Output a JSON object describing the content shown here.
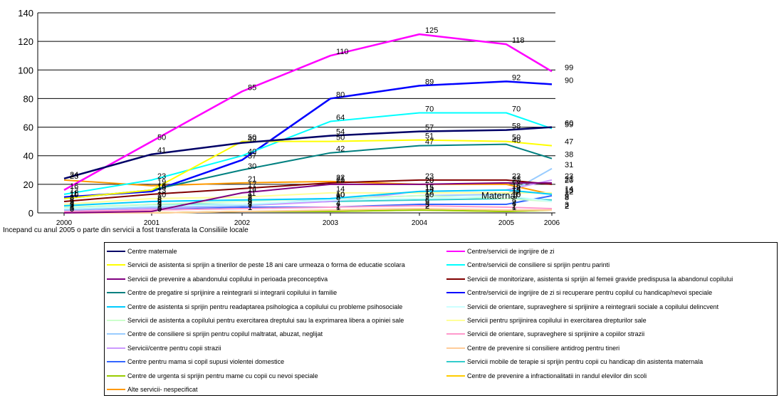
{
  "note": "Incepand cu anul 2005 o parte din servicii a fost transferata la Consiliile locale",
  "annotation": "Maternal",
  "chart_data": {
    "type": "line",
    "x": [
      "2000",
      "2001",
      "2002",
      "2003",
      "2004",
      "2005",
      "2006"
    ],
    "ylim": [
      0,
      140
    ],
    "yticks": [
      0,
      20,
      40,
      60,
      80,
      100,
      120,
      140
    ],
    "grid": true,
    "legend_position": "bottom",
    "series": [
      {
        "name": "Centre maternale",
        "color": "#000066",
        "values": [
          24,
          41,
          49,
          54,
          57,
          58,
          60
        ]
      },
      {
        "name": "Centre/servicii de ingrijire de zi",
        "color": "#ff00ff",
        "values": [
          16,
          50,
          85,
          110,
          125,
          118,
          99
        ]
      },
      {
        "name": "Servicii de asistenta si sprijin a tinerilor de peste 18 ani care urmeaza o forma de educatie scolara",
        "color": "#ffff00",
        "values": [
          10,
          16,
          50,
          50,
          51,
          50,
          47
        ]
      },
      {
        "name": "Centre/servicii de consiliere si sprijin pentru parinti",
        "color": "#00ffff",
        "values": [
          13,
          23,
          40,
          64,
          70,
          70,
          59
        ]
      },
      {
        "name": "Servicii de prevenire a abandonului copilului in perioada preconceptiva",
        "color": "#800080",
        "values": [
          0,
          1,
          14,
          20,
          20,
          21,
          21
        ]
      },
      {
        "name": "Servicii de monitorizare, asistenta si sprijin al femeii gravide predispusa la abandonul copilului",
        "color": "#800000",
        "values": [
          8,
          13,
          17,
          21,
          23,
          23,
          20
        ]
      },
      {
        "name": "Centre de pregatire si sprijinire a reintegrarii si integrarii copilului in familie",
        "color": "#008080",
        "values": [
          10,
          16,
          30,
          42,
          47,
          48,
          38
        ]
      },
      {
        "name": "Centre/servicii de ingrijire de zi si recuperare pentru copilul cu handicap/nevoi speciale",
        "color": "#0000ff",
        "values": [
          11,
          15,
          37,
          80,
          89,
          92,
          90
        ]
      },
      {
        "name": "Centre de asistenta si sprijin pentru readaptarea psihologica a copilului cu probleme psihosociale",
        "color": "#00ccff",
        "values": [
          5,
          8,
          9,
          10,
          15,
          16,
          13
        ]
      },
      {
        "name": "Servicii de orientare, supraveghere si sprijinire a reintegrarii sociale a copilului delincvent",
        "color": "#ccffff",
        "values": [
          3,
          5,
          6,
          9,
          10,
          12,
          8
        ]
      },
      {
        "name": "Servicii de asistenta a copilului pentru exercitarea dreptului sau la exprimarea libera a opiniei sale",
        "color": "#ccffcc",
        "values": [
          4,
          6,
          8,
          10,
          12,
          10,
          8
        ]
      },
      {
        "name": "Servicii pentru sprijinirea copilului in exercitarea drepturilor sale",
        "color": "#ffff99",
        "values": [
          6,
          10,
          11,
          14,
          14,
          14,
          14
        ]
      },
      {
        "name": "Centre de consiliere si sprijin pentru copilul maltratat, abuzat, neglijat",
        "color": "#99ccff",
        "values": [
          2,
          4,
          5,
          10,
          12,
          13,
          31
        ]
      },
      {
        "name": "Servicii de orientare, supraveghere si sprijinire a copiilor strazii",
        "color": "#ff99cc",
        "values": [
          1,
          2,
          3,
          4,
          5,
          4,
          3
        ]
      },
      {
        "name": "Servicii/centre pentru copii strazii",
        "color": "#cc99ff",
        "values": [
          1,
          3,
          5,
          8,
          15,
          16,
          23
        ]
      },
      {
        "name": "Centre de prevenire si consiliere antidrog pentru tineri",
        "color": "#ffcc99",
        "values": [
          0,
          0,
          1,
          2,
          3,
          2,
          2
        ]
      },
      {
        "name": "Centre pentru mama si copil supusi violentei domestice",
        "color": "#3366ff",
        "values": [
          2,
          3,
          4,
          4,
          6,
          6,
          12
        ]
      },
      {
        "name": "Servicii mobile de terapie si sprijin pentru copii cu handicap din asistenta maternala",
        "color": "#33cccc",
        "values": [
          3,
          6,
          6,
          8,
          9,
          10,
          9
        ]
      },
      {
        "name": "Centre de urgenta si sprijin pentru mame cu copii cu nevoi speciale",
        "color": "#99cc00",
        "values": [
          0,
          0,
          1,
          1,
          2,
          1,
          2
        ]
      },
      {
        "name": "Centre de prevenire a infractionalitatii in randul elevilor din scoli",
        "color": "#ffcc00",
        "values": [
          0,
          0,
          1,
          1,
          2,
          1,
          2
        ]
      },
      {
        "name": "Alte servicii- nespecificat",
        "color": "#ff9900",
        "values": [
          23,
          19,
          21,
          22,
          20,
          20,
          13
        ]
      }
    ]
  }
}
